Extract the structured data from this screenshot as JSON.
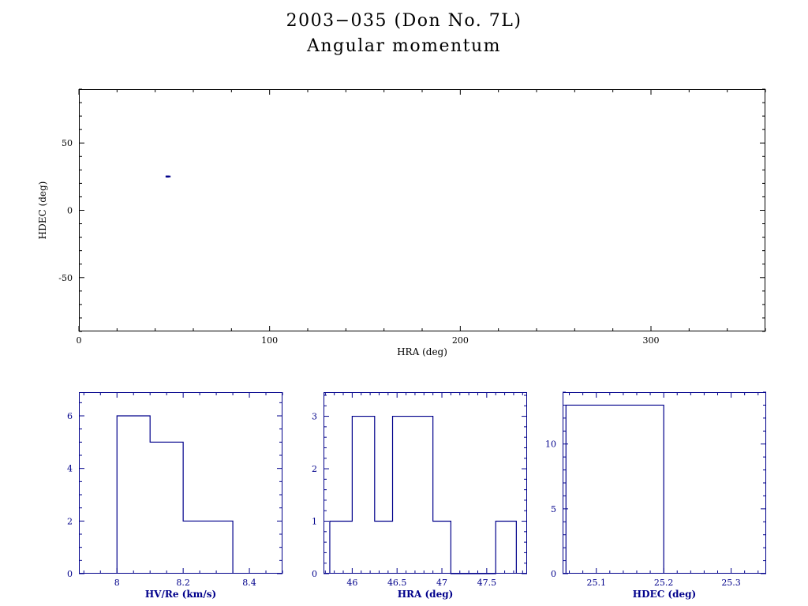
{
  "page": {
    "title_line1": "2003−035 (Don No. 7L)",
    "title_line2": "Angular momentum"
  },
  "colors": {
    "background": "#ffffff",
    "title": "#000000",
    "main_axis": "#000000",
    "hist_axis": "#00008b",
    "data_series": "#00008b"
  },
  "chart_data": [
    {
      "key": "main",
      "type": "scatter",
      "title": "",
      "xlabel": "HRA (deg)",
      "ylabel": "HDEC (deg)",
      "xlim": [
        0,
        360
      ],
      "ylim": [
        -90,
        90
      ],
      "xticks": [
        0,
        100,
        200,
        300
      ],
      "xtick_labels": [
        "0",
        "100",
        "200",
        "300"
      ],
      "yticks": [
        -50,
        0,
        50
      ],
      "ytick_labels": [
        "-50",
        "0",
        "50"
      ],
      "xminor": 20,
      "yminor": 10,
      "grid": false,
      "axis_color": "#000000",
      "label_bold": false,
      "points": [
        [
          45.85,
          25.1
        ],
        [
          46.05,
          25.12
        ],
        [
          46.1,
          25.15
        ],
        [
          46.18,
          25.09
        ],
        [
          46.3,
          25.13
        ],
        [
          46.5,
          25.11
        ],
        [
          46.58,
          25.16
        ],
        [
          46.65,
          25.08
        ],
        [
          46.72,
          25.14
        ],
        [
          46.8,
          25.12
        ],
        [
          46.86,
          25.1
        ],
        [
          47.0,
          25.13
        ],
        [
          47.65,
          25.11
        ]
      ]
    },
    {
      "key": "hist_hv",
      "type": "histogram",
      "xlabel": "HV/Re (km/s)",
      "ylabel": "",
      "xlim": [
        7.885,
        8.5
      ],
      "ylim": [
        0,
        6.9
      ],
      "xticks": [
        8,
        8.2,
        8.4
      ],
      "xtick_labels": [
        "8",
        "8.2",
        "8.4"
      ],
      "yticks": [
        0,
        2,
        4,
        6
      ],
      "ytick_labels": [
        "0",
        "2",
        "4",
        "6"
      ],
      "xminor": 0.05,
      "yminor": 0.5,
      "grid": false,
      "axis_color": "#00008b",
      "label_bold": true,
      "bin_edges": [
        8.0,
        8.1,
        8.2,
        8.35
      ],
      "counts": [
        6,
        5,
        2
      ]
    },
    {
      "key": "hist_hra",
      "type": "histogram",
      "xlabel": "HRA (deg)",
      "ylabel": "",
      "xlim": [
        45.68,
        47.95
      ],
      "ylim": [
        0,
        3.46
      ],
      "xticks": [
        46,
        46.5,
        47,
        47.5
      ],
      "xtick_labels": [
        "46",
        "46.5",
        "47",
        "47.5"
      ],
      "yticks": [
        0,
        1,
        2,
        3
      ],
      "ytick_labels": [
        "0",
        "1",
        "2",
        "3"
      ],
      "xminor": 0.1,
      "yminor": 0.2,
      "grid": false,
      "axis_color": "#00008b",
      "label_bold": true,
      "bin_edges": [
        45.75,
        46.0,
        46.25,
        46.45,
        46.675,
        46.9,
        47.1,
        47.6,
        47.83
      ],
      "counts": [
        1,
        3,
        1,
        3,
        3,
        1,
        0,
        1
      ]
    },
    {
      "key": "hist_hdec",
      "type": "histogram",
      "xlabel": "HDEC (deg)",
      "ylabel": "",
      "xlim": [
        25.05,
        25.352
      ],
      "ylim": [
        0,
        14
      ],
      "xticks": [
        25.1,
        25.2,
        25.3
      ],
      "xtick_labels": [
        "25.1",
        "25.2",
        "25.3"
      ],
      "yticks": [
        0,
        5,
        10
      ],
      "ytick_labels": [
        "0",
        "5",
        "10"
      ],
      "xminor": 0.02,
      "yminor": 1,
      "grid": false,
      "axis_color": "#00008b",
      "label_bold": true,
      "bin_edges": [
        25.055,
        25.2
      ],
      "counts": [
        13
      ]
    }
  ]
}
